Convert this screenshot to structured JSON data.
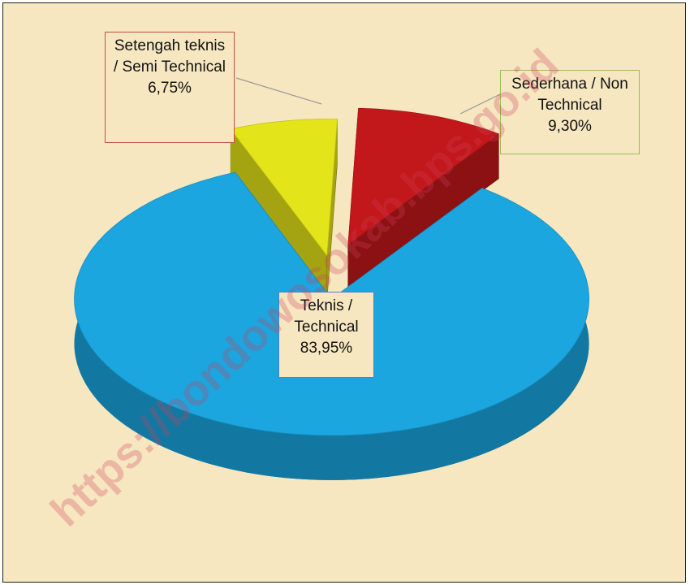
{
  "chart_data": {
    "type": "pie",
    "categories": [
      "Setengah teknis / Semi Technical",
      "Sederhana / Non Technical",
      "Teknis / Technical"
    ],
    "values": [
      6.75,
      9.3,
      83.95
    ],
    "value_labels": [
      "6,75%",
      "9,30%",
      "83,95%"
    ],
    "colors": [
      "#e4e41a",
      "#c2181b",
      "#1ba6e0"
    ],
    "watermark": "https://bondowosokab.bps.go.id"
  }
}
